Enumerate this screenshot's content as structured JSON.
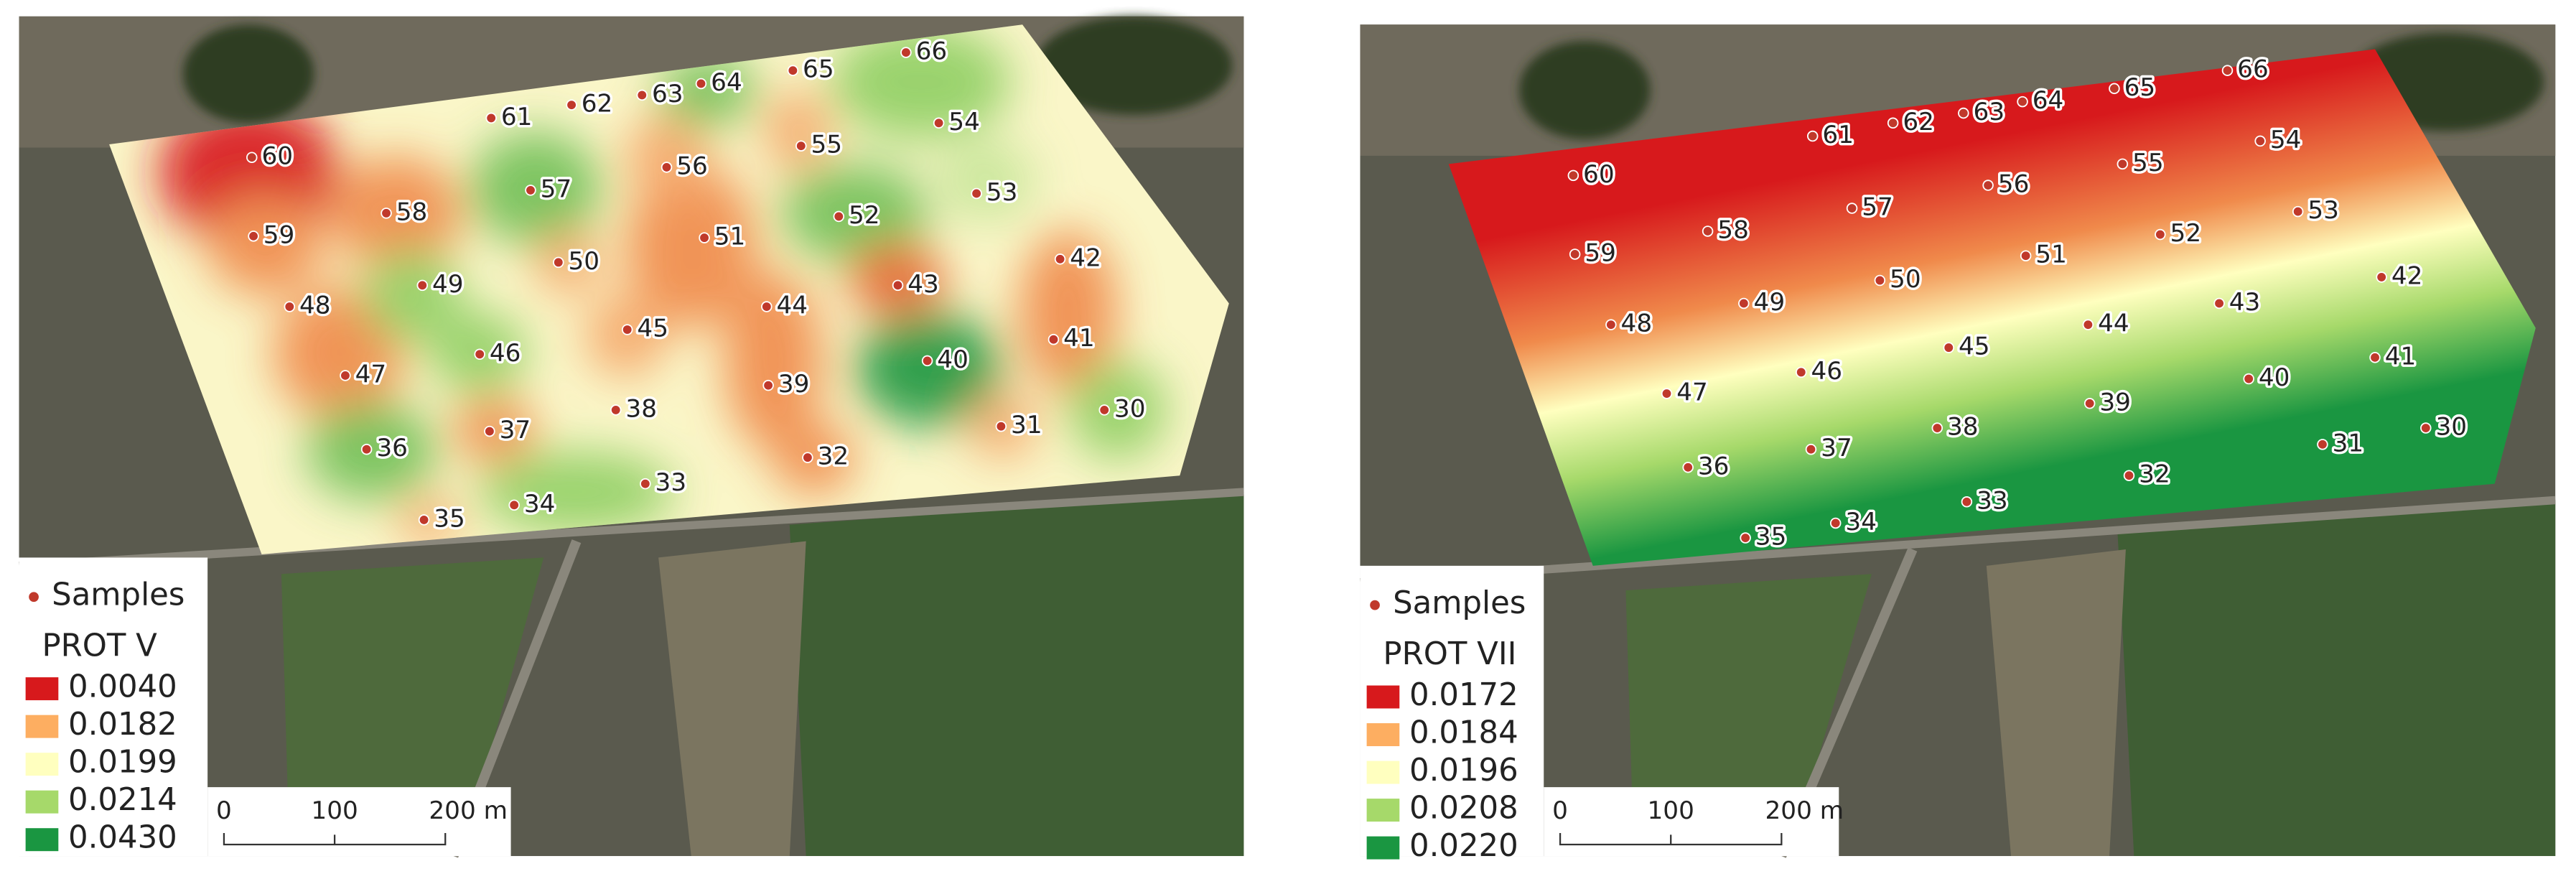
{
  "panels": [
    {
      "legend": {
        "samples": "Samples",
        "title": "PROT V",
        "items": [
          {
            "label": "0.0040",
            "color": "#d7191c"
          },
          {
            "label": "0.0182",
            "color": "#fdae61"
          },
          {
            "label": "0.0199",
            "color": "#ffffbf"
          },
          {
            "label": "0.0214",
            "color": "#a6d96a"
          },
          {
            "label": "0.0430",
            "color": "#1a9641"
          }
        ]
      },
      "scale": [
        "0",
        "100",
        "200 m"
      ],
      "samples": [
        "60",
        "59",
        "58",
        "57",
        "61",
        "62",
        "63",
        "64",
        "65",
        "66",
        "54",
        "55",
        "56",
        "53",
        "52",
        "51",
        "50",
        "49",
        "48",
        "42",
        "43",
        "44",
        "45",
        "46",
        "47",
        "41",
        "40",
        "39",
        "38",
        "37",
        "36",
        "30",
        "31",
        "32",
        "33",
        "34",
        "35"
      ]
    },
    {
      "legend": {
        "samples": "Samples",
        "title": "PROT VII",
        "items": [
          {
            "label": "0.0172",
            "color": "#d7191c"
          },
          {
            "label": "0.0184",
            "color": "#fdae61"
          },
          {
            "label": "0.0196",
            "color": "#ffffbf"
          },
          {
            "label": "0.0208",
            "color": "#a6d96a"
          },
          {
            "label": "0.0220",
            "color": "#1a9641"
          }
        ]
      },
      "scale": [
        "0",
        "100",
        "200 m"
      ],
      "samples": [
        "60",
        "59",
        "58",
        "57",
        "61",
        "62",
        "63",
        "64",
        "65",
        "66",
        "54",
        "55",
        "56",
        "53",
        "52",
        "51",
        "50",
        "49",
        "48",
        "42",
        "43",
        "44",
        "45",
        "46",
        "47",
        "41",
        "40",
        "39",
        "38",
        "37",
        "36",
        "30",
        "31",
        "32",
        "33",
        "34",
        "35"
      ]
    }
  ]
}
